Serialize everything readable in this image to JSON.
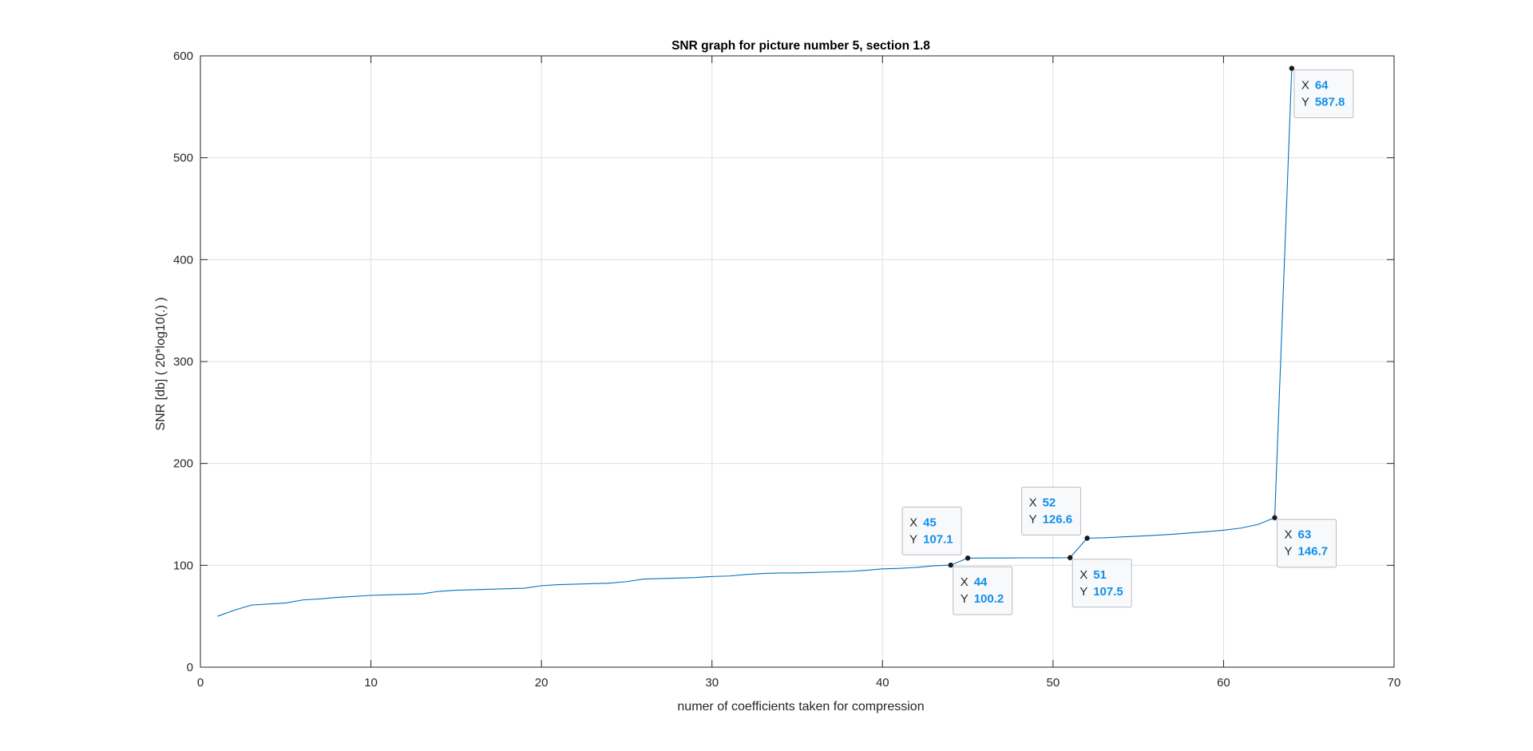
{
  "chart_data": {
    "type": "line",
    "title": "SNR graph for picture number 5, section 1.8",
    "xlabel": "numer of coefficients taken for compression",
    "ylabel": "SNR [db] ( 20*log10(.) )",
    "xlim": [
      0,
      70
    ],
    "ylim": [
      0,
      600
    ],
    "xticks": [
      0,
      10,
      20,
      30,
      40,
      50,
      60,
      70
    ],
    "yticks": [
      0,
      100,
      200,
      300,
      400,
      500,
      600
    ],
    "xtick_labels": [
      "0",
      "10",
      "20",
      "30",
      "40",
      "50",
      "60",
      "70"
    ],
    "ytick_labels": [
      "0",
      "100",
      "200",
      "300",
      "400",
      "500",
      "600"
    ],
    "grid": true,
    "series": [
      {
        "color": "#0072bd",
        "x": [
          1,
          2,
          3,
          4,
          5,
          6,
          7,
          8,
          9,
          10,
          11,
          12,
          13,
          14,
          15,
          16,
          17,
          18,
          19,
          20,
          21,
          22,
          23,
          24,
          25,
          26,
          27,
          28,
          29,
          30,
          31,
          32,
          33,
          34,
          35,
          36,
          37,
          38,
          39,
          40,
          41,
          42,
          43,
          44,
          45,
          46,
          47,
          48,
          49,
          50,
          51,
          52,
          53,
          54,
          55,
          56,
          57,
          58,
          59,
          60,
          61,
          62,
          63,
          64
        ],
        "y": [
          50,
          56,
          61,
          62,
          63,
          66,
          67,
          68.5,
          69.5,
          70.5,
          71,
          71.5,
          72,
          74.5,
          75.5,
          76,
          76.5,
          77,
          77.5,
          80,
          81,
          81.5,
          82,
          82.5,
          84,
          86.5,
          87,
          87.5,
          88,
          89,
          89.5,
          91,
          92,
          92.5,
          92.5,
          93,
          93.5,
          94,
          95,
          96.5,
          97,
          98,
          99.5,
          100.2,
          107.1,
          107.2,
          107.2,
          107.3,
          107.3,
          107.4,
          107.5,
          126.6,
          127,
          127.8,
          128.6,
          129.5,
          130.5,
          131.7,
          133,
          134.5,
          136.5,
          140,
          146.7,
          587.8
        ]
      }
    ],
    "annotations": [
      {
        "x": 64,
        "y": 587.8,
        "x_label": "X",
        "y_label": "Y",
        "x_text": "64",
        "y_text": "587.8",
        "placement": "below-right"
      },
      {
        "x": 63,
        "y": 146.7,
        "x_label": "X",
        "y_label": "Y",
        "x_text": "63",
        "y_text": "146.7",
        "placement": "below-right"
      },
      {
        "x": 52,
        "y": 126.6,
        "x_label": "X",
        "y_label": "Y",
        "x_text": "52",
        "y_text": "126.6",
        "placement": "above-left"
      },
      {
        "x": 51,
        "y": 107.5,
        "x_label": "X",
        "y_label": "Y",
        "x_text": "51",
        "y_text": "107.5",
        "placement": "below-right"
      },
      {
        "x": 45,
        "y": 107.1,
        "x_label": "X",
        "y_label": "Y",
        "x_text": "45",
        "y_text": "107.1",
        "placement": "above-left"
      },
      {
        "x": 44,
        "y": 100.2,
        "x_label": "X",
        "y_label": "Y",
        "x_text": "44",
        "y_text": "100.2",
        "placement": "below-right"
      }
    ],
    "colors": {
      "line": "#0072bd",
      "datatip_value": "#0f8fea",
      "datatip_key": "#262626",
      "grid": "#dfdfdf",
      "axes": "#262626"
    }
  }
}
